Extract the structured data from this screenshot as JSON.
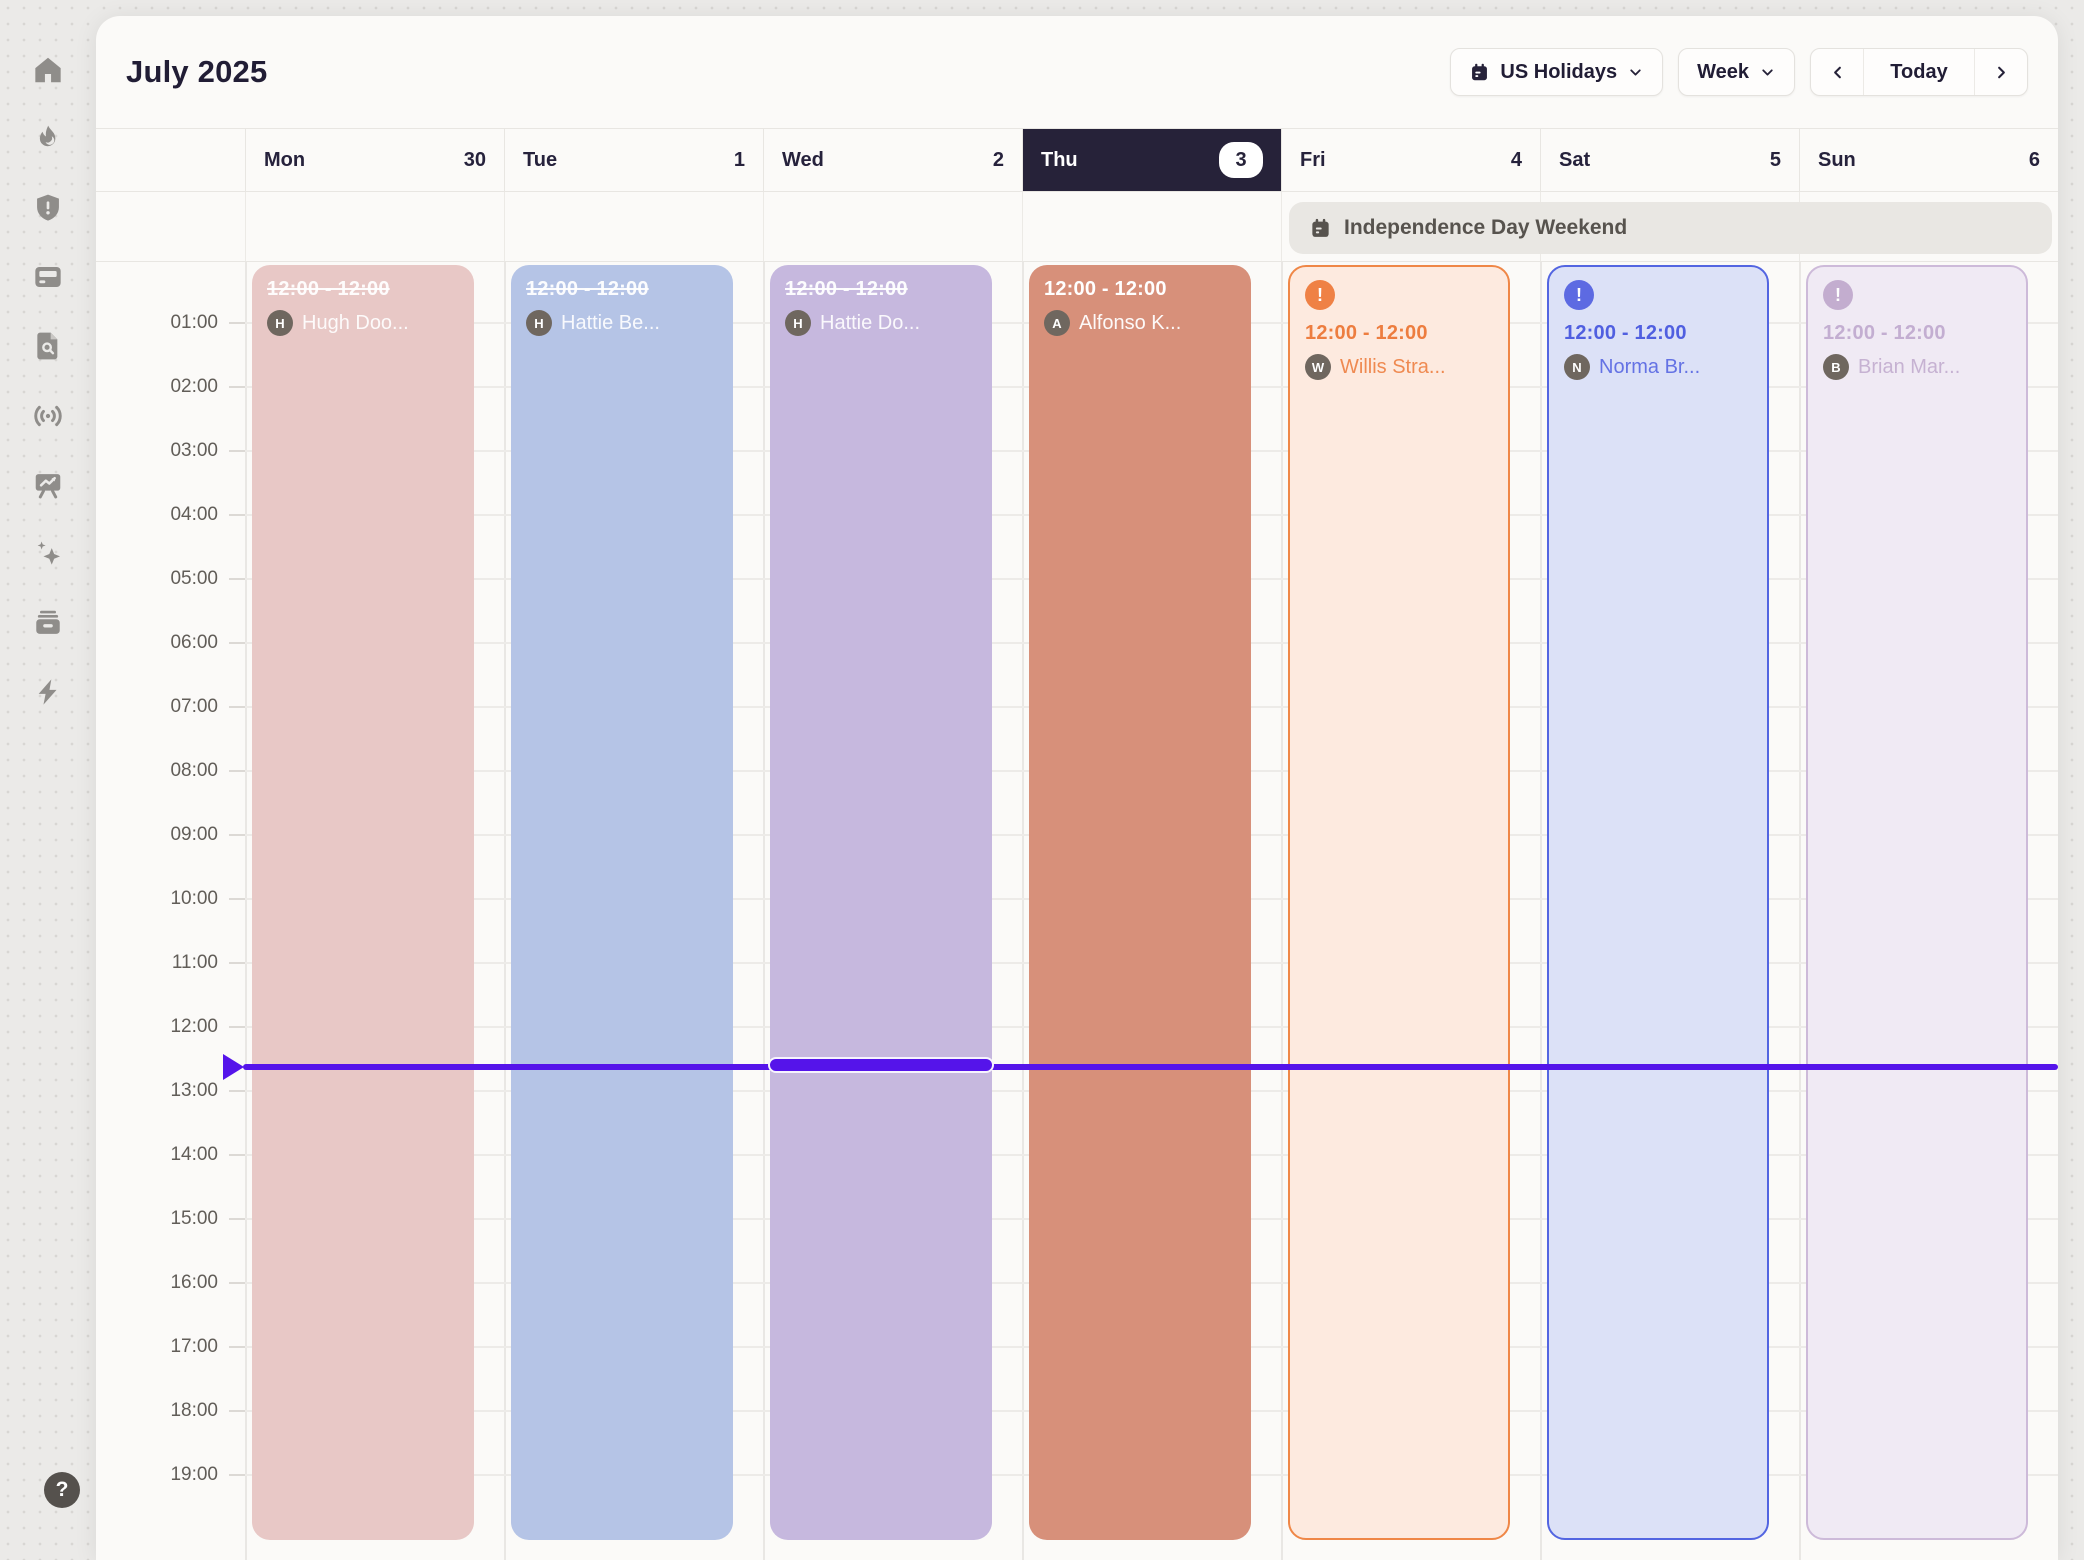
{
  "sidebar": {
    "items": [
      "home",
      "flame",
      "shield-alert",
      "card-reader",
      "file-search",
      "broadcast",
      "presentation-chart",
      "sparkles",
      "archive",
      "zap"
    ],
    "help_label": "?"
  },
  "header": {
    "title": "July 2025",
    "calendar_filter": "US Holidays",
    "view": "Week",
    "today": "Today"
  },
  "days": [
    {
      "label": "Mon",
      "date": "30",
      "selected": false
    },
    {
      "label": "Tue",
      "date": "1",
      "selected": false
    },
    {
      "label": "Wed",
      "date": "2",
      "selected": false
    },
    {
      "label": "Thu",
      "date": "3",
      "selected": true
    },
    {
      "label": "Fri",
      "date": "4",
      "selected": false
    },
    {
      "label": "Sat",
      "date": "5",
      "selected": false
    },
    {
      "label": "Sun",
      "date": "6",
      "selected": false
    }
  ],
  "all_day": {
    "title": "Independence Day Weekend"
  },
  "time_axis": [
    "01:00",
    "02:00",
    "03:00",
    "04:00",
    "05:00",
    "06:00",
    "07:00",
    "08:00",
    "09:00",
    "10:00",
    "11:00",
    "12:00",
    "13:00",
    "14:00",
    "15:00",
    "16:00",
    "17:00",
    "18:00",
    "19:00"
  ],
  "events": [
    {
      "day": "Mon",
      "time": "12:00 - 12:00",
      "attendee": "Hugh Doo...",
      "avatar_initial": "H",
      "variant": "filled",
      "struck": true,
      "badge": "",
      "colors": {
        "bg": "#e8c8c6",
        "text": "rgba(255,255,255,0.95)",
        "name": "rgba(255,255,255,0.9)"
      }
    },
    {
      "day": "Tue",
      "time": "12:00 - 12:00",
      "attendee": "Hattie Be...",
      "avatar_initial": "H",
      "variant": "filled",
      "struck": true,
      "badge": "",
      "colors": {
        "bg": "#b5c4e6",
        "text": "rgba(255,255,255,0.95)",
        "name": "rgba(255,255,255,0.9)"
      }
    },
    {
      "day": "Wed",
      "time": "12:00 - 12:00",
      "attendee": "Hattie Do...",
      "avatar_initial": "H",
      "variant": "filled",
      "struck": true,
      "badge": "",
      "colors": {
        "bg": "#c6b8de",
        "text": "rgba(255,255,255,0.95)",
        "name": "rgba(255,255,255,0.9)"
      }
    },
    {
      "day": "Thu",
      "time": "12:00 - 12:00",
      "attendee": "Alfonso K...",
      "avatar_initial": "A",
      "variant": "filled",
      "struck": false,
      "badge": "",
      "colors": {
        "bg": "#d7907a",
        "text": "#ffffff",
        "name": "rgba(255,255,255,0.95)"
      }
    },
    {
      "day": "Fri",
      "time": "12:00 - 12:00",
      "attendee": "Willis Stra...",
      "avatar_initial": "W",
      "variant": "outlined",
      "struck": false,
      "badge": "!",
      "colors": {
        "bg": "#fdeadf",
        "border": "#ef8747",
        "text": "#ed7d3f",
        "name": "#ef8a51",
        "badge_bg": "#ef8145"
      }
    },
    {
      "day": "Sat",
      "time": "12:00 - 12:00",
      "attendee": "Norma Br...",
      "avatar_initial": "N",
      "variant": "outlined",
      "struck": false,
      "badge": "!",
      "colors": {
        "bg": "#dce1f7",
        "border": "#5365e1",
        "text": "#505fe0",
        "name": "#6472e4",
        "badge_bg": "#5d6ae2"
      }
    },
    {
      "day": "Sun",
      "time": "12:00 - 12:00",
      "attendee": "Brian Mar...",
      "avatar_initial": "B",
      "variant": "outlined",
      "struck": false,
      "badge": "!",
      "colors": {
        "bg": "#f0eaf4",
        "border": "#cdbad9",
        "text": "#c3aed1",
        "name": "#c6b2d2",
        "badge_bg": "#c3adcf"
      }
    }
  ],
  "now_indicator": {
    "color": "#5514ea",
    "time": "12:40"
  },
  "colors": {
    "page_bg": "#ebeae8",
    "card_bg": "#fbfaf8",
    "selected_day_bg": "#262239",
    "grid_line": "#edebe8",
    "all_day_bg": "#e9e7e3",
    "accent_now": "#5514ea"
  }
}
